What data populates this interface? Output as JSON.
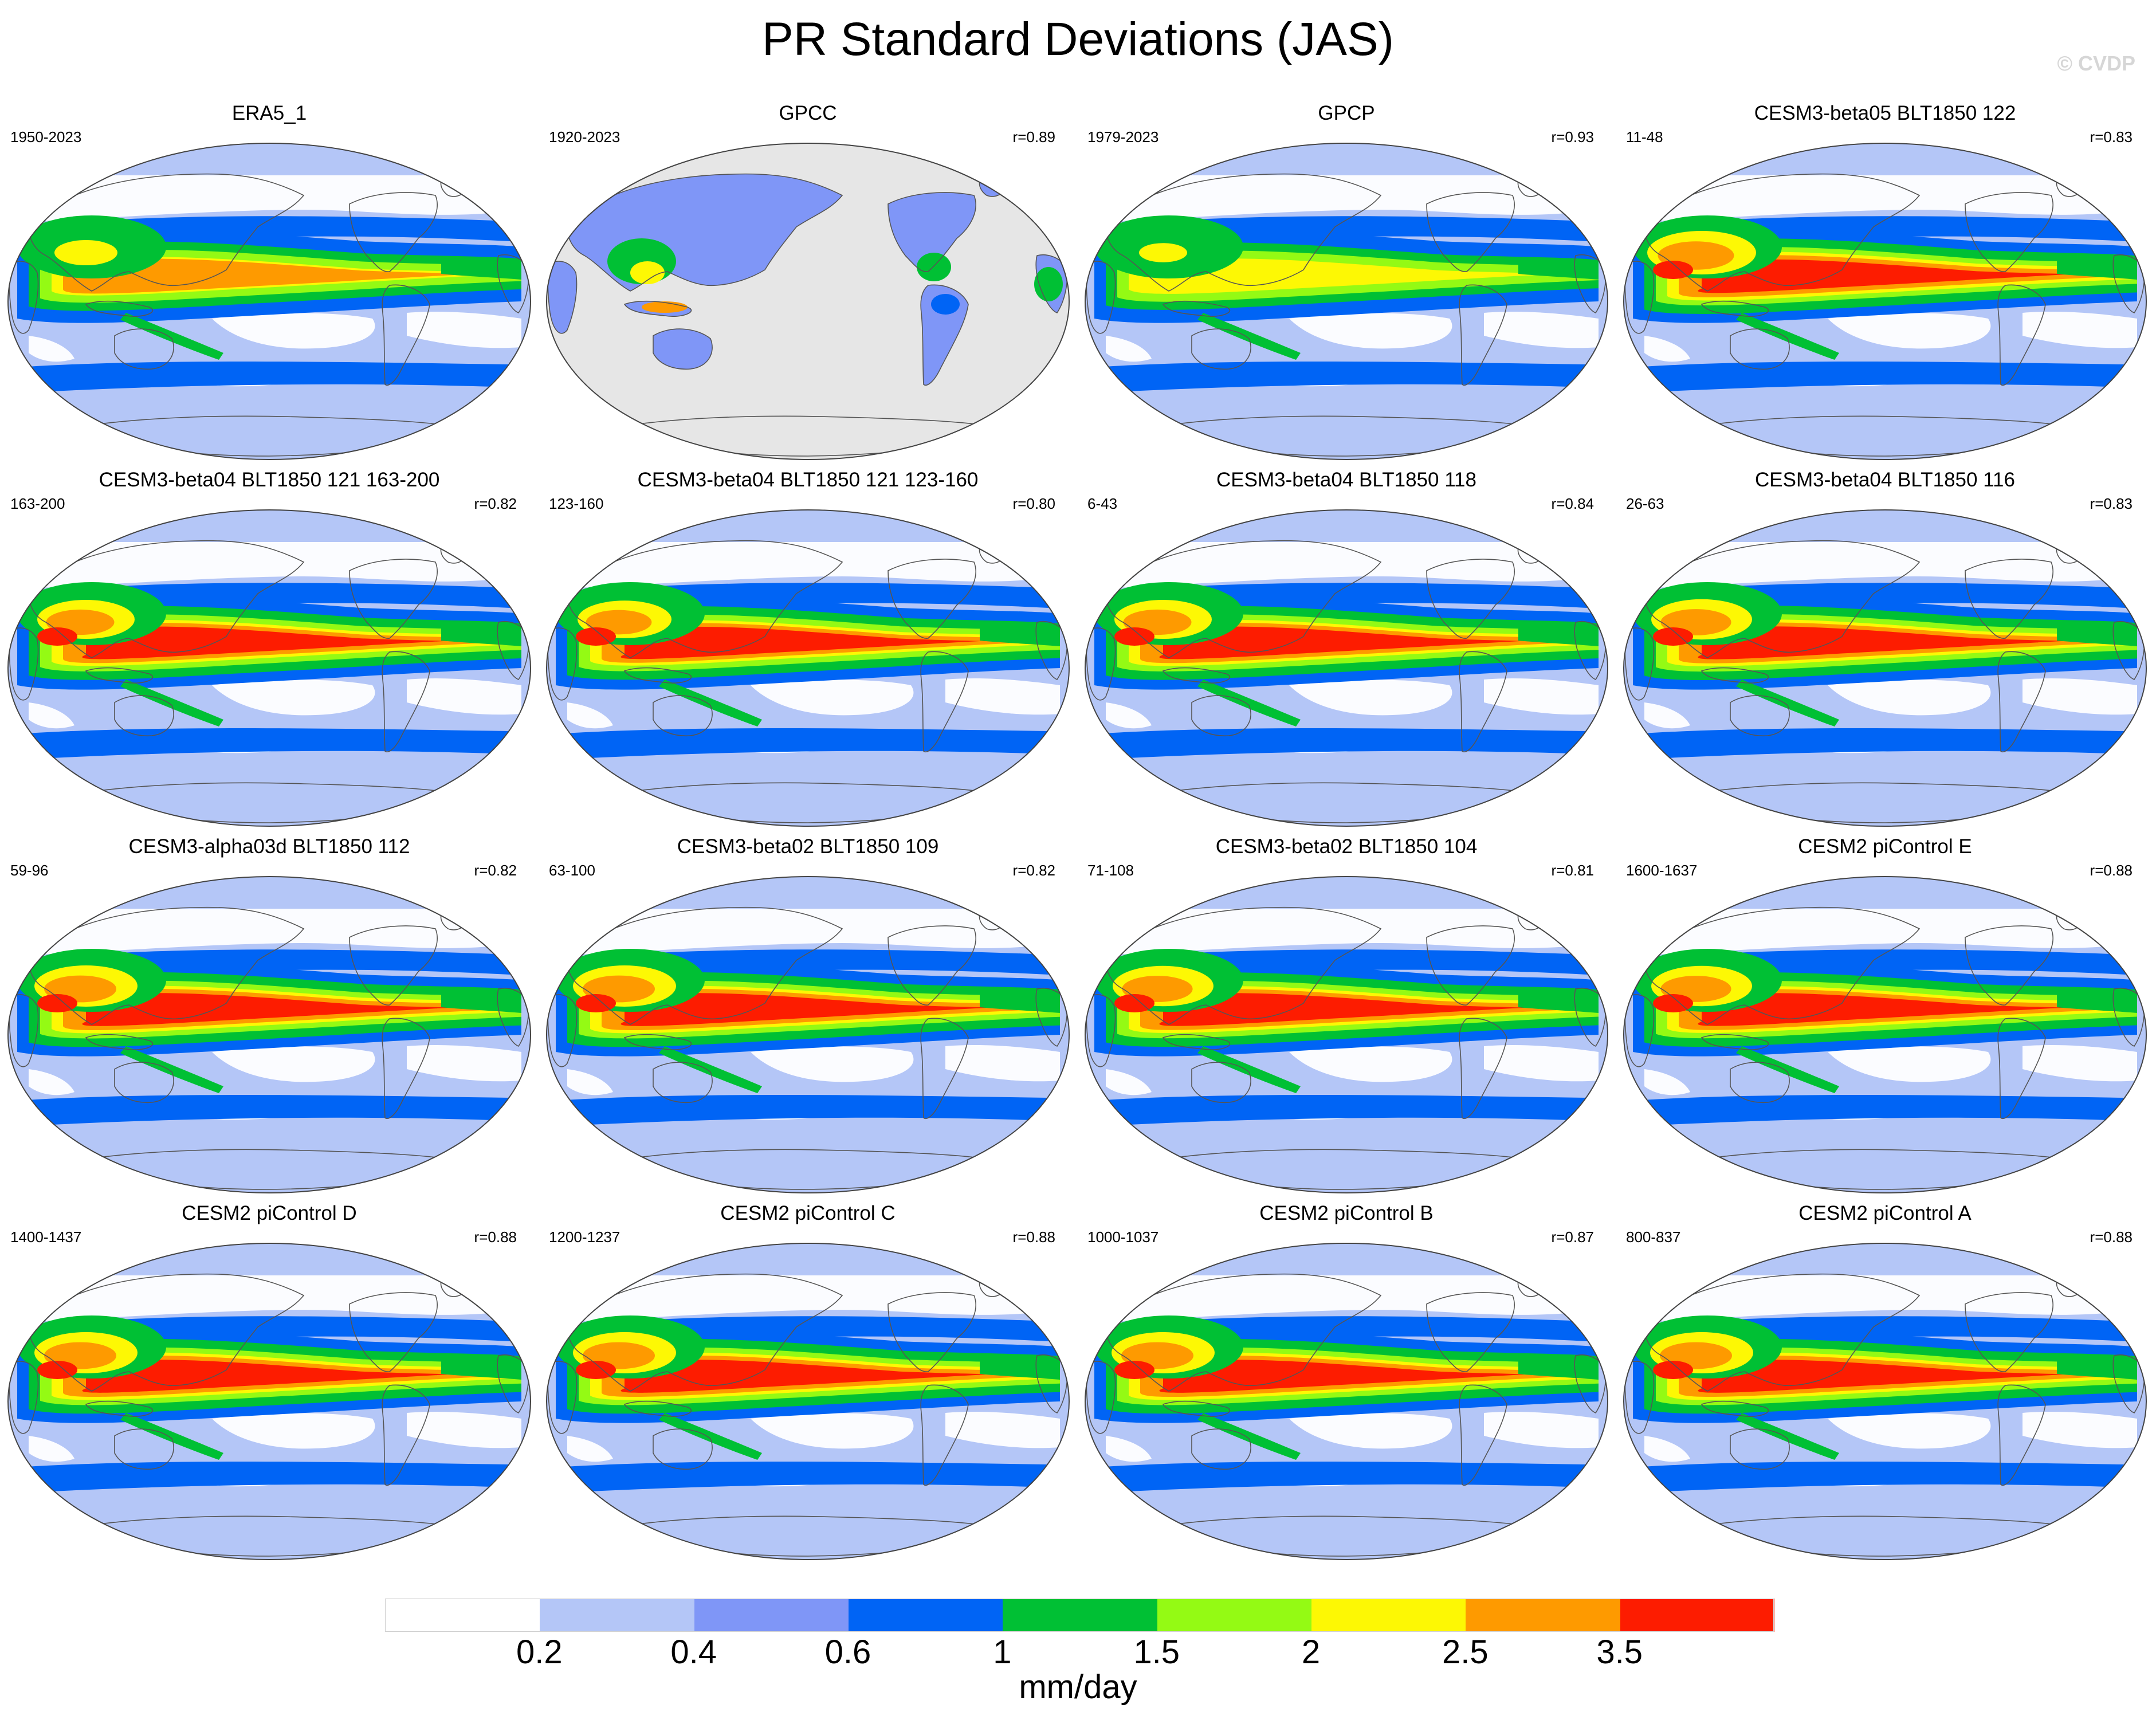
{
  "title": "PR Standard Deviations (JAS)",
  "credit": "© CVDP",
  "colorbar": {
    "units": "mm/day",
    "tick_labels": [
      "0.2",
      "0.4",
      "0.6",
      "1",
      "1.5",
      "2",
      "2.5",
      "3.5"
    ],
    "colors": [
      "#ffffff",
      "#b4c6f7",
      "#7f96f7",
      "#0064f5",
      "#00c034",
      "#94fa14",
      "#fdf804",
      "#fe9a00",
      "#fd1c00"
    ]
  },
  "panels": [
    {
      "title": "ERA5_1",
      "years": "1950-2023",
      "r": "",
      "intensity": 0.55
    },
    {
      "title": "GPCC",
      "years": "1920-2023",
      "r": "r=0.89",
      "land_only": true,
      "intensity": 0.6
    },
    {
      "title": "GPCP",
      "years": "1979-2023",
      "r": "r=0.93",
      "intensity": 0.42
    },
    {
      "title": "CESM3-beta05 BLT1850 122",
      "years": "11-48",
      "r": "r=0.83",
      "intensity": 0.95
    },
    {
      "title": "CESM3-beta04 BLT1850 121 163-200",
      "years": "163-200",
      "r": "r=0.82",
      "intensity": 0.85
    },
    {
      "title": "CESM3-beta04 BLT1850 121 123-160",
      "years": "123-160",
      "r": "r=0.80",
      "intensity": 0.82
    },
    {
      "title": "CESM3-beta04 BLT1850 118",
      "years": "6-43",
      "r": "r=0.84",
      "intensity": 0.85
    },
    {
      "title": "CESM3-beta04 BLT1850 116",
      "years": "26-63",
      "r": "r=0.83",
      "intensity": 0.88
    },
    {
      "title": "CESM3-alpha03d BLT1850 112",
      "years": "59-96",
      "r": "r=0.82",
      "intensity": 0.9
    },
    {
      "title": "CESM3-beta02 BLT1850 109",
      "years": "63-100",
      "r": "r=0.82",
      "intensity": 0.9
    },
    {
      "title": "CESM3-beta02 BLT1850 104",
      "years": "71-108",
      "r": "r=0.81",
      "intensity": 0.88
    },
    {
      "title": "CESM2 piControl E",
      "years": "1600-1637",
      "r": "r=0.88",
      "intensity": 0.88
    },
    {
      "title": "CESM2 piControl D",
      "years": "1400-1437",
      "r": "r=0.88",
      "intensity": 0.9
    },
    {
      "title": "CESM2 piControl C",
      "years": "1200-1237",
      "r": "r=0.88",
      "intensity": 0.9
    },
    {
      "title": "CESM2 piControl B",
      "years": "1000-1037",
      "r": "r=0.87",
      "intensity": 0.9
    },
    {
      "title": "CESM2 piControl A",
      "years": "800-837",
      "r": "r=0.88",
      "intensity": 0.9
    }
  ]
}
